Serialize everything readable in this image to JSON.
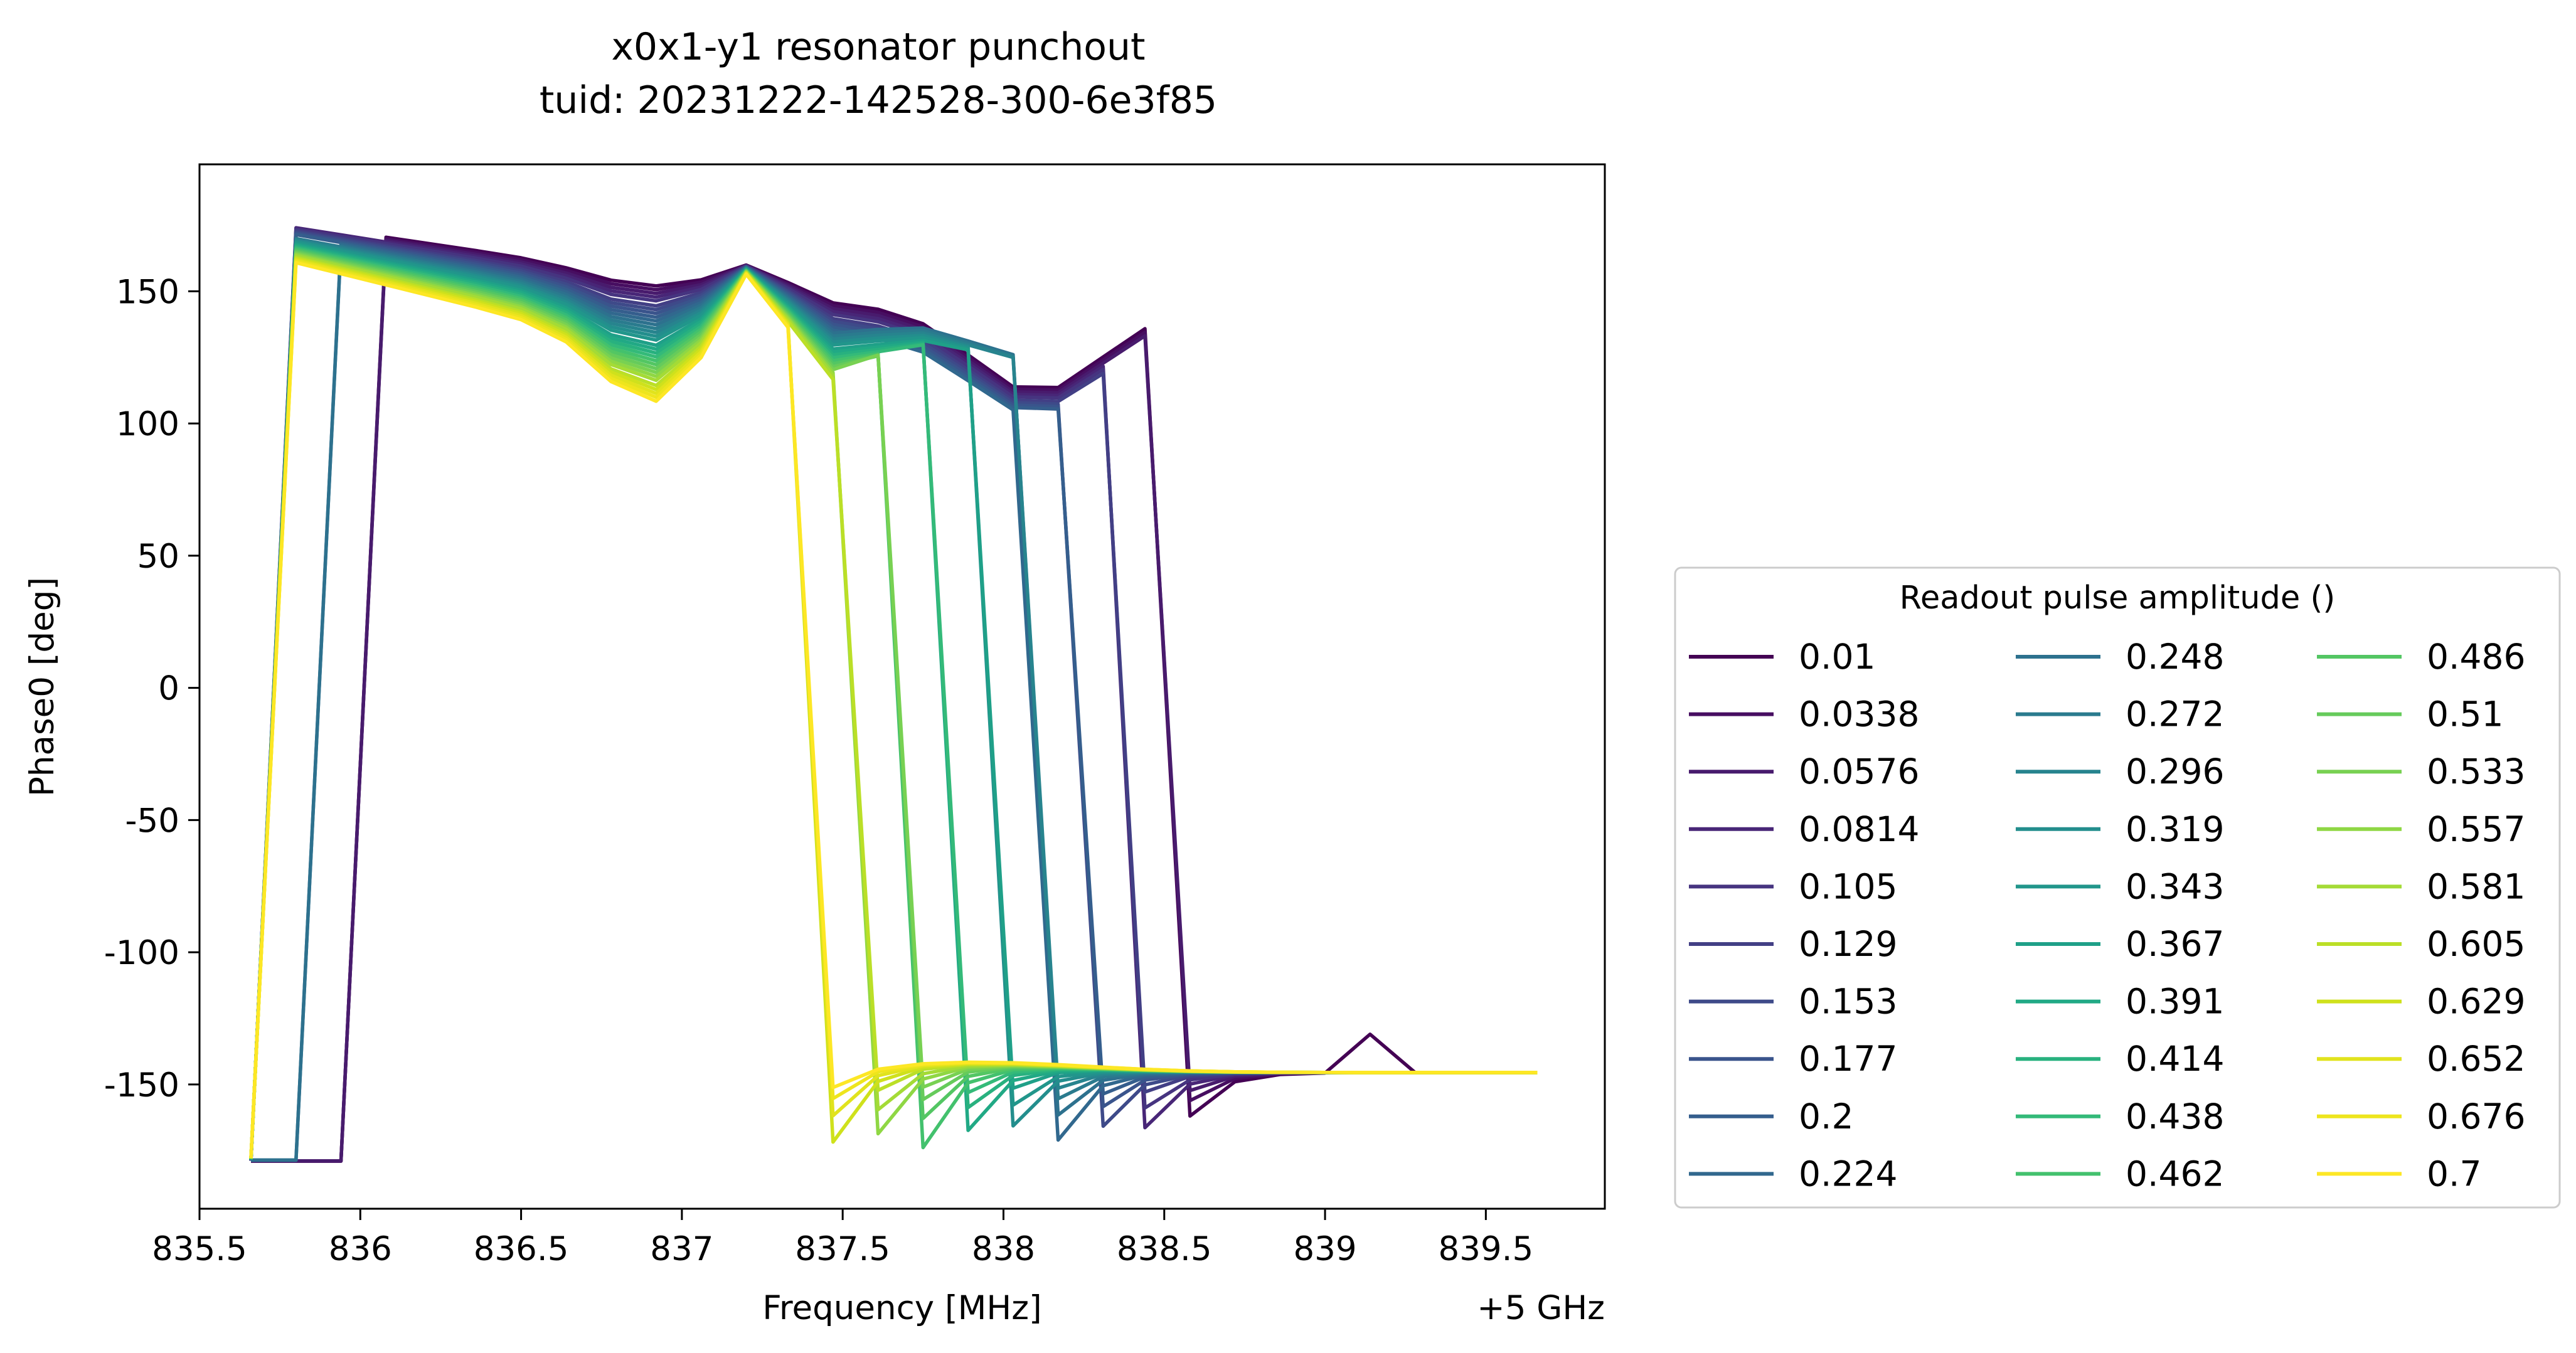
{
  "chart_data": {
    "type": "line",
    "title": "x0x1-y1 resonator punchout",
    "subtitle": "tuid: 20231222-142528-300-6e3f85",
    "xlabel": "Frequency [MHz]",
    "ylabel": "Phase0 [deg]",
    "x_offset_label": "+5 GHz",
    "xlim": [
      835.5,
      839.87
    ],
    "ylim": [
      -197,
      198
    ],
    "x_ticks": [
      835.5,
      836,
      836.5,
      837,
      837.5,
      838,
      838.5,
      839,
      839.5
    ],
    "x_tick_labels": [
      "835.5",
      "836",
      "836.5",
      "837",
      "837.5",
      "838",
      "838.5",
      "839",
      "839.5"
    ],
    "y_ticks": [
      150,
      100,
      50,
      0,
      -50,
      -100,
      -150
    ],
    "y_tick_labels": [
      "150",
      "100",
      "50",
      "0",
      "-50",
      "-100",
      "-150"
    ],
    "grid": false,
    "x": [
      835.66,
      835.8,
      835.94,
      836.08,
      836.22,
      836.36,
      836.5,
      836.64,
      836.78,
      836.92,
      837.06,
      837.2,
      837.33,
      837.47,
      837.61,
      837.75,
      837.89,
      838.03,
      838.17,
      838.31,
      838.44,
      838.58,
      838.72,
      838.86,
      839.0,
      839.14,
      839.28,
      839.42,
      839.56,
      839.66
    ],
    "legend": {
      "title": "Readout pulse amplitude ()",
      "position": "right",
      "columns": 3
    },
    "amplitudes": [
      "0.01",
      "0.0338",
      "0.0576",
      "0.0814",
      "0.105",
      "0.129",
      "0.153",
      "0.177",
      "0.2",
      "0.224",
      "0.248",
      "0.272",
      "0.296",
      "0.319",
      "0.343",
      "0.367",
      "0.391",
      "0.414",
      "0.438",
      "0.462",
      "0.486",
      "0.51",
      "0.533",
      "0.557",
      "0.581",
      "0.605",
      "0.629",
      "0.652",
      "0.676",
      "0.7"
    ],
    "colors": [
      "#440154",
      "#470e61",
      "#481b6d",
      "#482677",
      "#463480",
      "#423f85",
      "#3e4a89",
      "#3a548c",
      "#355e8d",
      "#31688e",
      "#2d718e",
      "#2a7b8e",
      "#27848e",
      "#238e8d",
      "#21968b",
      "#1fa088",
      "#21a985",
      "#28b17f",
      "#34ba79",
      "#43c16d",
      "#53c663",
      "#66cb5b",
      "#78d152",
      "#8fd744",
      "#a4db36",
      "#bbdf27",
      "#cfe11c",
      "#e1e31d",
      "#eee51d",
      "#fde725"
    ]
  }
}
